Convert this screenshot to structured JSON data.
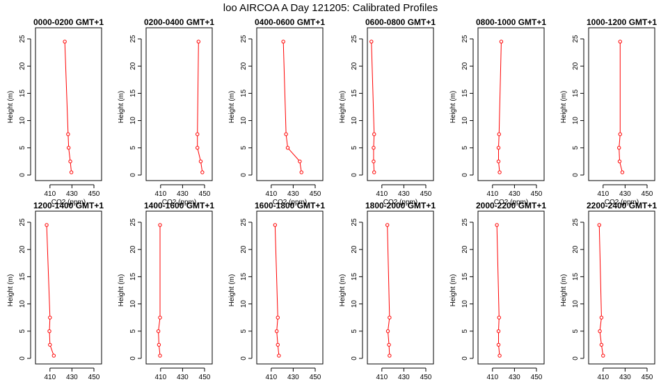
{
  "title": "loo AIRCOA A  Day 121205: Calibrated Profiles",
  "chart_data": {
    "type": "line",
    "title": "loo AIRCOA A  Day 121205: Calibrated Profiles",
    "xlabel": "CO2 (ppm)",
    "ylabel": "Height (m)",
    "xlim": [
      400,
      450
    ],
    "ylim": [
      0,
      25
    ],
    "xticks": [
      410,
      430,
      450
    ],
    "yticks": [
      0,
      5,
      10,
      15,
      20,
      25
    ],
    "heights": [
      0.5,
      2.5,
      5,
      7.5,
      24.5
    ],
    "line_color": "#ff0000",
    "panels": [
      {
        "name": "0000-0200 GMT+1",
        "co2": [
          429.5,
          428.5,
          427.0,
          426.5,
          423.5
        ]
      },
      {
        "name": "0200-0400 GMT+1",
        "co2": [
          448.0,
          446.5,
          443.5,
          443.5,
          444.5
        ]
      },
      {
        "name": "0400-0600 GMT+1",
        "co2": [
          437.5,
          436.0,
          425.0,
          423.5,
          421.0
        ]
      },
      {
        "name": "0600-0800 GMT+1",
        "co2": [
          403.0,
          402.5,
          402.5,
          403.0,
          400.5
        ]
      },
      {
        "name": "0800-1000 GMT+1",
        "co2": [
          416.5,
          415.5,
          415.5,
          416.0,
          418.0
        ]
      },
      {
        "name": "1000-1200 GMT+1",
        "co2": [
          427.5,
          425.0,
          424.5,
          425.5,
          425.5
        ]
      },
      {
        "name": "1200-1400 GMT+1",
        "co2": [
          413.5,
          410.0,
          409.5,
          410.0,
          407.0
        ]
      },
      {
        "name": "1400-1600 GMT+1",
        "co2": [
          409.5,
          408.5,
          408.0,
          409.5,
          409.5
        ]
      },
      {
        "name": "1600-1800 GMT+1",
        "co2": [
          417.0,
          416.0,
          415.0,
          416.0,
          413.5
        ]
      },
      {
        "name": "1800-2000 GMT+1",
        "co2": [
          417.0,
          416.5,
          415.5,
          417.0,
          415.0
        ]
      },
      {
        "name": "2000-2200 GMT+1",
        "co2": [
          416.5,
          415.5,
          415.5,
          416.0,
          414.0
        ]
      },
      {
        "name": "2200-2400 GMT+1",
        "co2": [
          410.0,
          408.5,
          407.0,
          408.5,
          406.5
        ]
      }
    ]
  }
}
